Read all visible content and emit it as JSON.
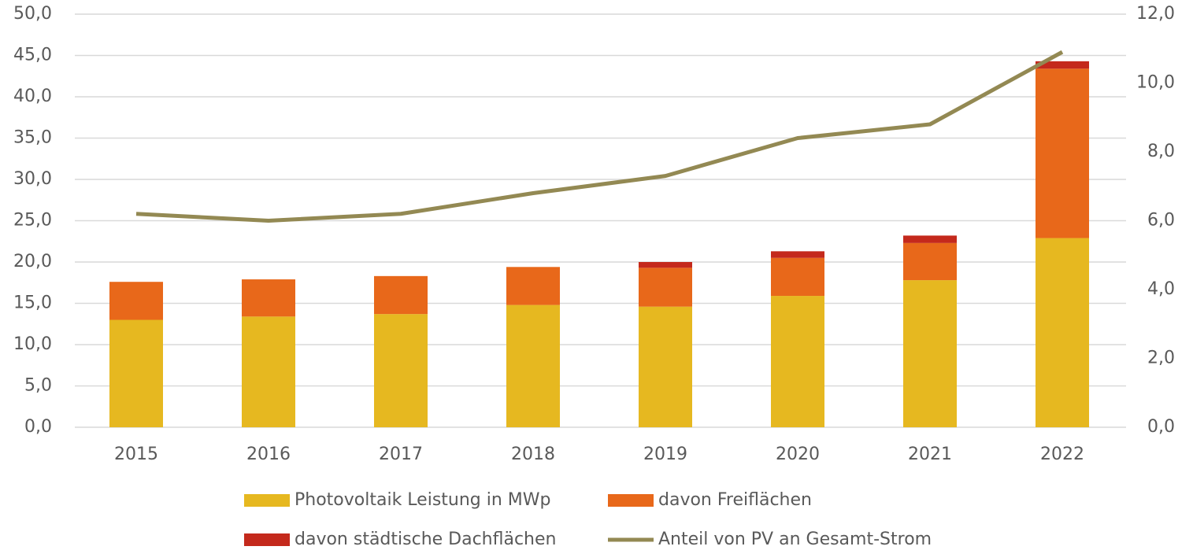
{
  "chart_data": {
    "type": "bar",
    "categories": [
      "2015",
      "2016",
      "2017",
      "2018",
      "2019",
      "2020",
      "2021",
      "2022"
    ],
    "series": [
      {
        "name": "Photovoltaik Leistung in MWp",
        "color": "#e6b820",
        "values": [
          13.0,
          13.4,
          13.7,
          14.8,
          14.6,
          15.9,
          17.8,
          22.9
        ]
      },
      {
        "name": "davon Freiflächen",
        "color": "#e8681a",
        "values": [
          4.6,
          4.5,
          4.6,
          4.6,
          4.7,
          4.6,
          4.5,
          20.5
        ]
      },
      {
        "name": "davon städtische Dachflächen",
        "color": "#c4291c",
        "values": [
          0,
          0,
          0,
          0,
          0.7,
          0.8,
          0.9,
          0.9
        ]
      },
      {
        "name": "Anteil von PV an Gesamt-Strom",
        "color": "#938953",
        "type": "line",
        "axis": "y2",
        "values": [
          6.2,
          6.0,
          6.2,
          6.8,
          7.3,
          8.4,
          8.8,
          10.9
        ]
      }
    ],
    "stacked": true,
    "ylim": [
      0,
      50
    ],
    "yticks": [
      {
        "value": 0,
        "label": "0,0"
      },
      {
        "value": 5,
        "label": "5,0"
      },
      {
        "value": 10,
        "label": "10,0"
      },
      {
        "value": 15,
        "label": "15,0"
      },
      {
        "value": 20,
        "label": "20,0"
      },
      {
        "value": 25,
        "label": "25,0"
      },
      {
        "value": 30,
        "label": "30,0"
      },
      {
        "value": 35,
        "label": "35,0"
      },
      {
        "value": 40,
        "label": "40,0"
      },
      {
        "value": 45,
        "label": "45,0"
      },
      {
        "value": 50,
        "label": "50,0"
      }
    ],
    "y2lim": [
      0,
      12
    ],
    "y2ticks": [
      {
        "value": 0,
        "label": "0,0"
      },
      {
        "value": 2,
        "label": "2,0"
      },
      {
        "value": 4,
        "label": "4,0"
      },
      {
        "value": 6,
        "label": "6,0"
      },
      {
        "value": 8,
        "label": "8,0"
      },
      {
        "value": 10,
        "label": "10,0"
      },
      {
        "value": 12,
        "label": "12,0"
      }
    ],
    "grid": true,
    "legend": "bottom"
  }
}
